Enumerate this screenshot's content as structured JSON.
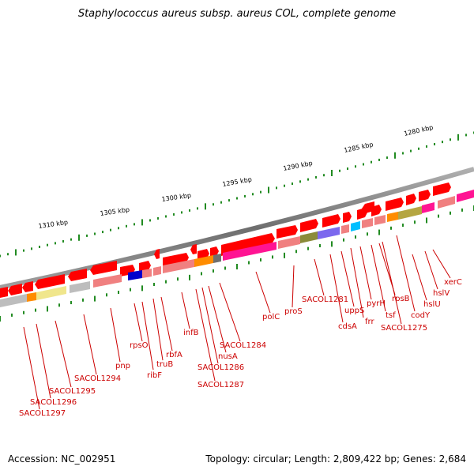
{
  "title": "Staphylococcus aureus subsp. aureus COL, complete genome",
  "footer": {
    "accession": "Accession: NC_002951",
    "topology": "Topology: circular; Length: 2,809,422 bp; Genes: 2,684"
  },
  "scale_labels": [
    "1310 kbp",
    "1305 kbp",
    "1300 kbp",
    "1295 kbp",
    "1290 kbp",
    "1285 kbp",
    "1280 kbp"
  ],
  "gene_labels": [
    "xerC",
    "hslV",
    "hslU",
    "codY",
    "SACOL1275",
    "rpsB",
    "tsf",
    "pyrH",
    "frr",
    "uppS",
    "cdsA",
    "SACOL1281",
    "proS",
    "polC",
    "SACOL1284",
    "nusA",
    "SACOL1286",
    "SACOL1287",
    "infB",
    "rbfA",
    "truB",
    "ribF",
    "rpsO",
    "pnp",
    "SACOL1294",
    "SACOL1295",
    "SACOL1296",
    "SACOL1297"
  ],
  "colors": {
    "gene_red": "#ff0000",
    "gene_pink": "#f08080",
    "gene_magenta": "#ff1493",
    "gene_blue": "#0000cc",
    "gene_orange": "#ff8c00",
    "gene_olive": "#8b8b3a",
    "gene_purple": "#6a5acd",
    "gene_cyan": "#00bfff",
    "gene_yellow": "#f0e68c",
    "gene_grey": "#bdbdbd",
    "backbone": "#808080",
    "tick_green": "#228b22",
    "label_red": "#cc0000"
  }
}
